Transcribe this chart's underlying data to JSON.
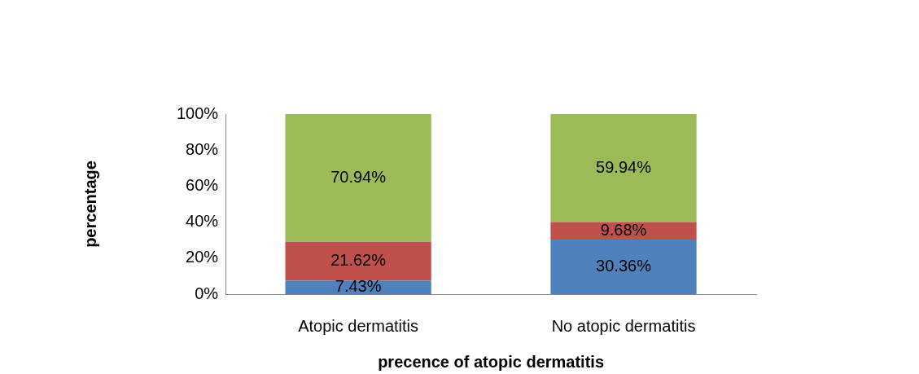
{
  "chart_data": {
    "type": "bar",
    "stacked": true,
    "xlabel": "precence of atopic dermatitis",
    "ylabel": "percentage",
    "categories": [
      "Atopic dermatitis",
      "No atopic dermatitis"
    ],
    "series": [
      {
        "color": "#4f81bd",
        "values": [
          7.43,
          30.36
        ],
        "value_labels": [
          "7.43%",
          "30.36%"
        ]
      },
      {
        "color": "#c0504d",
        "values": [
          21.62,
          9.68
        ],
        "value_labels": [
          "21.62%",
          "9.68%"
        ]
      },
      {
        "color": "#9bbb59",
        "values": [
          70.94,
          59.94
        ],
        "value_labels": [
          "70.94%",
          "59.94%"
        ]
      }
    ],
    "ylim": [
      0,
      100
    ],
    "yticks": [
      {
        "value": 0,
        "label": "0%"
      },
      {
        "value": 20,
        "label": "20%"
      },
      {
        "value": 40,
        "label": "40%"
      },
      {
        "value": 60,
        "label": "60%"
      },
      {
        "value": 80,
        "label": "80%"
      },
      {
        "value": 100,
        "label": "100%"
      }
    ],
    "grid": false,
    "legend": false
  }
}
